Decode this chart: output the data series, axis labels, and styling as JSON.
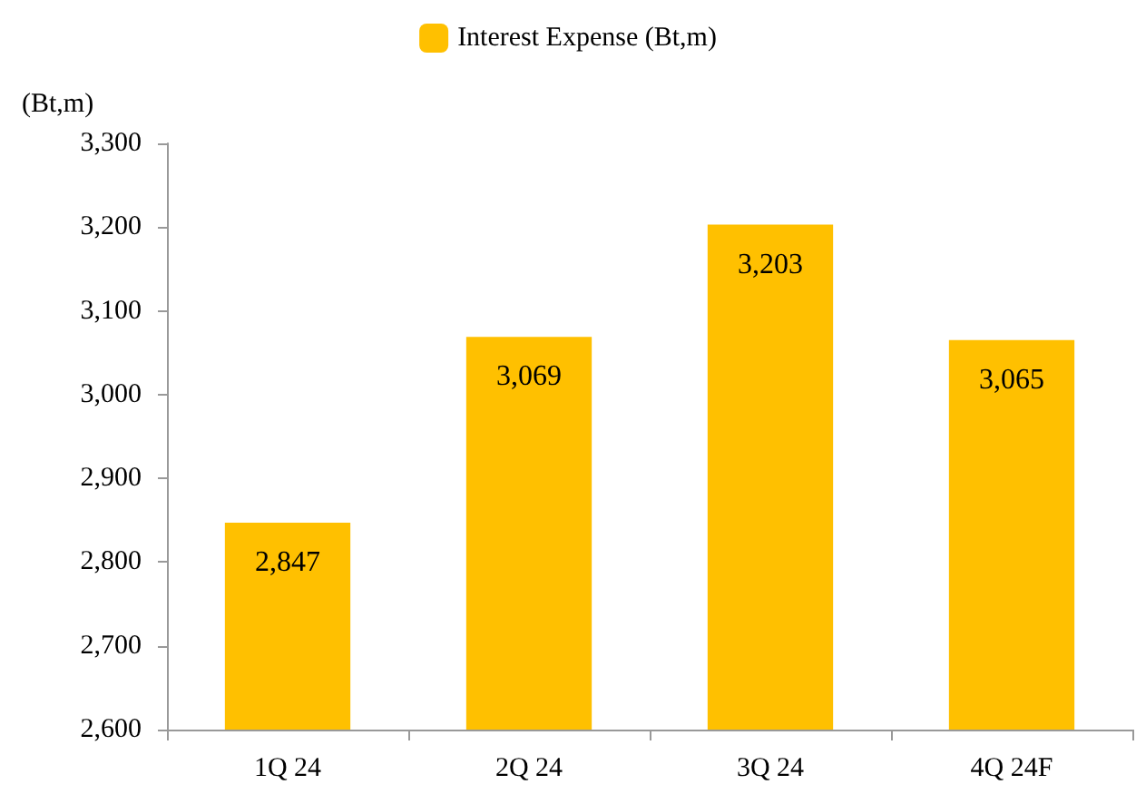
{
  "chart_data": {
    "type": "bar",
    "ylabel": "(Bt,m)",
    "categories": [
      "1Q 24",
      "2Q 24",
      "3Q 24",
      "4Q 24F"
    ],
    "series": [
      {
        "name": "Interest Expense (Bt,m)",
        "color": "#ffc000",
        "values": [
          2847,
          3069,
          3203,
          3065
        ],
        "value_labels": [
          "2,847",
          "3,069",
          "3,203",
          "3,065"
        ]
      }
    ],
    "ylim": [
      2600,
      3300
    ],
    "yticks": [
      {
        "value": 2600,
        "label": "2,600"
      },
      {
        "value": 2700,
        "label": "2,700"
      },
      {
        "value": 2800,
        "label": "2,800"
      },
      {
        "value": 2900,
        "label": "2,900"
      },
      {
        "value": 3000,
        "label": "3,000"
      },
      {
        "value": 3100,
        "label": "3,100"
      },
      {
        "value": 3200,
        "label": "3,200"
      },
      {
        "value": 3300,
        "label": "3,300"
      }
    ],
    "grid": false,
    "legend": "top"
  }
}
